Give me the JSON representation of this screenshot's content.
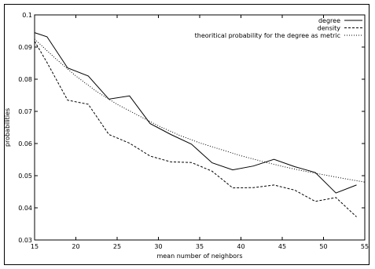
{
  "chart_data": {
    "type": "line",
    "xlabel": "mean number of neighbors",
    "ylabel": "probabilities",
    "xlim": [
      15,
      55
    ],
    "ylim": [
      0.03,
      0.1
    ],
    "x_ticks": [
      "15",
      "20",
      "25",
      "30",
      "35",
      "40",
      "45",
      "50",
      "55"
    ],
    "y_ticks": [
      "0.03",
      "0.04",
      "0.05",
      "0.06",
      "0.07",
      "0.08",
      "0.09",
      "0.1"
    ],
    "legend_position": "top-right",
    "grid": false,
    "series": [
      {
        "name": "degree",
        "style": "solid",
        "x": [
          15,
          16.5,
          19,
          21.5,
          24,
          26.5,
          29,
          31.5,
          34,
          36.5,
          39,
          41.5,
          44,
          46.5,
          49,
          51.5,
          54
        ],
        "y": [
          0.0945,
          0.0932,
          0.0835,
          0.081,
          0.0738,
          0.0748,
          0.0662,
          0.0628,
          0.0598,
          0.054,
          0.0518,
          0.053,
          0.0551,
          0.0528,
          0.051,
          0.0446,
          0.0471
        ]
      },
      {
        "name": "density",
        "style": "dashed",
        "x": [
          15,
          16.5,
          19,
          21.5,
          24,
          26.5,
          29,
          31.5,
          34,
          36.5,
          39,
          41.5,
          44,
          46.5,
          49,
          51.5,
          54
        ],
        "y": [
          0.0918,
          0.0852,
          0.0735,
          0.0722,
          0.0628,
          0.0601,
          0.0561,
          0.0543,
          0.0541,
          0.0514,
          0.0462,
          0.0463,
          0.0471,
          0.0455,
          0.042,
          0.0432,
          0.0372
        ]
      },
      {
        "name": "theoritical probability for the degree as metric",
        "style": "dotted",
        "x": [
          15,
          17.5,
          20,
          22.5,
          25,
          27.5,
          30,
          32.5,
          35,
          37.5,
          40,
          42.5,
          45,
          47.5,
          50,
          52.5,
          55
        ],
        "y": [
          0.0925,
          0.0865,
          0.081,
          0.0762,
          0.0722,
          0.0688,
          0.0655,
          0.0626,
          0.0602,
          0.0582,
          0.0562,
          0.0545,
          0.0529,
          0.0515,
          0.0503,
          0.0491,
          0.048
        ]
      }
    ]
  }
}
